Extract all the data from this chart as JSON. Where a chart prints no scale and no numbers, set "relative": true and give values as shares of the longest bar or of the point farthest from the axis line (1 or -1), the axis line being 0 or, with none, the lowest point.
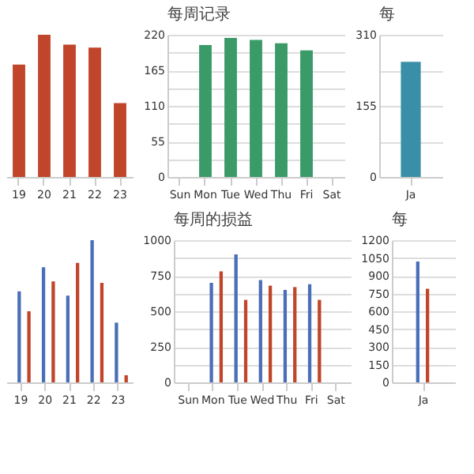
{
  "chart_data": [
    {
      "type": "bar",
      "relative": true,
      "tick_labels": "x",
      "categories": [
        "19",
        "20",
        "21",
        "22",
        "23"
      ],
      "values": [
        0.79,
        1,
        0.93,
        0.91,
        0.52
      ],
      "color": "#c0452a"
    },
    {
      "type": "bar",
      "title": "每周记录",
      "categories": [
        "Sun",
        "Mon",
        "Tue",
        "Wed",
        "Thu",
        "Fri",
        "Sat"
      ],
      "values": [
        null,
        204,
        215,
        212,
        207,
        196,
        null
      ],
      "color": "#3a9a68",
      "ylim": [
        0,
        220
      ],
      "yticks": [
        0,
        {
          "value": 27.5,
          "label": null
        },
        55,
        {
          "value": 82.5,
          "label": null
        },
        110,
        {
          "value": 137.5,
          "label": null
        },
        165,
        {
          "value": 192.5,
          "label": null
        },
        220
      ],
      "grid": "y"
    },
    {
      "type": "bar",
      "title": "每",
      "categories": [
        "Ja"
      ],
      "values": [
        251
      ],
      "color": "#3a8fa8",
      "ylim": [
        0,
        310
      ],
      "yticks": [
        0,
        {
          "value": 77.5,
          "label": null
        },
        155,
        {
          "value": 232.5,
          "label": null
        },
        310
      ],
      "grid": "y"
    },
    {
      "type": "bar",
      "relative": true,
      "tick_labels": "x",
      "categories": [
        "19",
        "20",
        "21",
        "22",
        "23"
      ],
      "series": [
        {
          "color": "#4a6fb8",
          "values": [
            0.64,
            0.81,
            0.61,
            1,
            0.42
          ]
        },
        {
          "color": "#c0452a",
          "values": [
            0.5,
            0.71,
            0.84,
            0.7,
            0.05
          ]
        }
      ]
    },
    {
      "type": "bar",
      "title": "每周的损益",
      "categories": [
        "Sun",
        "Mon",
        "Tue",
        "Wed",
        "Thu",
        "Fri",
        "Sat"
      ],
      "series": [
        {
          "color": "#4a6fb8",
          "values": [
            null,
            700,
            900,
            720,
            650,
            690,
            null
          ]
        },
        {
          "color": "#c0452a",
          "values": [
            null,
            780,
            580,
            680,
            670,
            580,
            null
          ]
        }
      ],
      "ylim": [
        0,
        1000
      ],
      "yticks": [
        0,
        {
          "value": 125,
          "label": null
        },
        250,
        {
          "value": 375,
          "label": null
        },
        500,
        {
          "value": 625,
          "label": null
        },
        750,
        {
          "value": 875,
          "label": null
        },
        1000
      ],
      "grid": "y"
    },
    {
      "type": "bar",
      "title": "每",
      "categories": [
        "Ja"
      ],
      "series": [
        {
          "color": "#4a6fb8",
          "values": [
            1020
          ]
        },
        {
          "color": "#c0452a",
          "values": [
            790
          ]
        }
      ],
      "ylim": [
        0,
        1200
      ],
      "yticks": [
        0,
        150,
        300,
        450,
        600,
        750,
        900,
        1050,
        1200
      ],
      "grid": "y"
    }
  ]
}
